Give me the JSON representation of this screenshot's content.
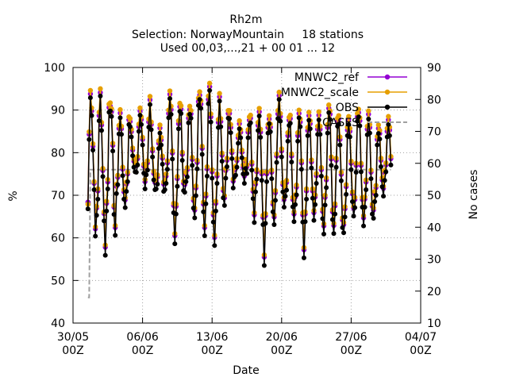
{
  "chart_data": {
    "type": "line",
    "title": "Rh2m",
    "subtitle_lines": [
      "Selection: NorwayMountain     18 stations",
      "Used 00,03,...,21 + 00 01 ... 12"
    ],
    "xlabel": "Date",
    "ylabel": "%",
    "y2label": "No cases",
    "ylim": [
      40,
      100
    ],
    "y2lim": [
      10,
      90
    ],
    "xlim_days": [
      0,
      35
    ],
    "y_ticks": [
      "40",
      "50",
      "60",
      "70",
      "80",
      "90",
      "100"
    ],
    "y2_ticks": [
      "10",
      "20",
      "30",
      "40",
      "50",
      "60",
      "70",
      "80",
      "90"
    ],
    "x_ticks": [
      {
        "line1": "30/05",
        "line2": "00Z",
        "day": 0
      },
      {
        "line1": "06/06",
        "line2": "00Z",
        "day": 7
      },
      {
        "line1": "13/06",
        "line2": "00Z",
        "day": 14
      },
      {
        "line1": "20/06",
        "line2": "00Z",
        "day": 21
      },
      {
        "line1": "27/06",
        "line2": "00Z",
        "day": 28
      },
      {
        "line1": "04/07",
        "line2": "00Z",
        "day": 35
      }
    ],
    "grid": true,
    "legend_position": "top-right",
    "series": [
      {
        "name": "MNWC2_ref",
        "color": "#9400d3",
        "style": "line-points"
      },
      {
        "name": "MNWC2_scale",
        "color": "#e69f00",
        "style": "line-points"
      },
      {
        "name": "OBS",
        "color": "#000000",
        "style": "line-points"
      },
      {
        "name": "CASES",
        "color": "#a0a0a0",
        "style": "dashed"
      }
    ],
    "time_step_hours": 3,
    "start_day": 1.5,
    "end_day": 32.0,
    "series_values": {
      "obs": [
        66.8,
        83.1,
        92.9,
        88.7,
        80.6,
        71.3,
        60.4,
        65.3,
        69.1,
        87.5,
        93.3,
        85.2,
        74.4,
        64.0,
        55.9,
        66.3,
        71.5,
        89.5,
        89.8,
        88.5,
        80.4,
        65.5,
        60.6,
        70.4,
        72.5,
        84.4,
        88.2,
        84.3,
        74.6,
        69.1,
        67.1,
        70.9,
        73.2,
        86.6,
        86.1,
        83.7,
        79.3,
        76.6,
        75.5,
        75.4,
        77.1,
        85.0,
        88.8,
        86.6,
        81.8,
        75.2,
        71.5,
        74.8,
        75.9,
        86.0,
        91.3,
        85.4,
        79.0,
        73.6,
        71.3,
        71.5,
        72.6,
        81.0,
        84.6,
        81.8,
        77.3,
        70.9,
        71.3,
        72.8,
        76.1,
        88.2,
        92.7,
        89.0,
        78.5,
        65.9,
        58.6,
        65.6,
        72.1,
        85.6,
        89.7,
        89.2,
        78.2,
        71.1,
        70.7,
        73.2,
        74.3,
        87.0,
        89.0,
        88.1,
        77.0,
        67.0,
        64.7,
        69.9,
        76.2,
        91.1,
        92.5,
        90.4,
        79.6,
        66.1,
        60.5,
        68.0,
        74.5,
        91.5,
        94.6,
        87.2,
        74.0,
        63.7,
        58.2,
        66.3,
        72.8,
        85.9,
        92.1,
        86.1,
        78.0,
        69.4,
        67.6,
        74.0,
        76.7,
        88.1,
        88.0,
        84.7,
        78.6,
        71.7,
        74.3,
        74.7,
        76.6,
        82.2,
        85.6,
        83.5,
        78.8,
        75.0,
        72.8,
        76.3,
        75.1,
        83.5,
        86.5,
        87.0,
        75.9,
        69.2,
        63.6,
        70.8,
        73.8,
        85.2,
        88.6,
        83.6,
        73.5,
        63.1,
        53.5,
        63.4,
        73.2,
        84.6,
        86.8,
        84.9,
        73.9,
        66.1,
        63.1,
        68.8,
        77.7,
        88.0,
        92.5,
        87.4,
        79.0,
        70.8,
        67.2,
        69.8,
        71.2,
        82.7,
        86.4,
        86.9,
        77.8,
        67.3,
        63.8,
        67.8,
        70.1,
        82.7,
        88.2,
        86.1,
        76.1,
        63.7,
        55.3,
        63.8,
        69.1,
        84.0,
        87.6,
        85.6,
        76.4,
        69.3,
        64.1,
        67.8,
        72.8,
        84.3,
        87.7,
        84.3,
        74.5,
        64.5,
        60.9,
        67.7,
        71.8,
        84.6,
        89.4,
        87.8,
        77.0,
        64.3,
        61.0,
        65.6,
        76.6,
        86.2,
        86.7,
        81.8,
        73.4,
        62.4,
        61.2,
        64.9,
        70.2,
        84.0,
        86.6,
        83.7,
        76.0,
        68.5,
        65.1,
        67.1,
        75.4,
        87.4,
        88.4,
        86.3,
        75.5,
        67.2,
        62.8,
        67.2,
        71.3,
        84.2,
        87.9,
        84.6,
        73.9,
        65.6,
        64.6,
        68.5,
        70.0,
        81.8,
        84.5,
        83.2,
        76.7,
        72.0,
        69.8,
        73.5,
        75.5,
        83.7,
        86.6,
        84.0,
        77.1
      ],
      "ref": [
        68.4,
        84.3,
        93.8,
        89.8,
        81.5,
        72.8,
        62.1,
        67.0,
        71.0,
        88.7,
        94.1,
        86.5,
        75.8,
        65.7,
        57.8,
        68.1,
        73.1,
        90.6,
        90.9,
        89.6,
        81.7,
        67.2,
        62.4,
        72.1,
        74.2,
        85.7,
        89.3,
        85.6,
        76.1,
        70.8,
        68.9,
        72.6,
        75.0,
        87.7,
        87.3,
        84.9,
        80.6,
        78.0,
        76.9,
        77.0,
        78.6,
        86.1,
        89.8,
        87.8,
        83.1,
        76.8,
        73.2,
        76.4,
        77.6,
        87.2,
        92.4,
        86.6,
        80.4,
        75.1,
        73.0,
        73.3,
        74.3,
        82.2,
        85.8,
        83.0,
        78.7,
        72.6,
        73.0,
        74.5,
        77.6,
        89.2,
        93.7,
        90.1,
        79.9,
        67.6,
        60.5,
        67.4,
        73.9,
        86.8,
        90.8,
        90.2,
        79.6,
        72.8,
        72.5,
        74.9,
        76.0,
        88.1,
        90.1,
        89.1,
        78.4,
        68.8,
        66.5,
        71.7,
        77.7,
        92.0,
        93.5,
        91.4,
        81.0,
        67.9,
        62.4,
        69.8,
        76.2,
        92.5,
        95.5,
        88.4,
        75.5,
        65.4,
        60.1,
        68.1,
        74.5,
        87.1,
        93.1,
        87.3,
        79.4,
        71.1,
        69.4,
        75.8,
        78.2,
        89.2,
        89.2,
        85.9,
        80.0,
        73.3,
        76.0,
        76.3,
        78.1,
        83.5,
        86.8,
        84.8,
        80.1,
        76.6,
        74.5,
        77.9,
        76.7,
        84.8,
        87.6,
        88.1,
        77.3,
        70.9,
        65.4,
        72.6,
        75.5,
        86.4,
        89.6,
        84.8,
        75.0,
        64.8,
        55.5,
        65.2,
        75.0,
        85.9,
        87.9,
        86.0,
        75.4,
        67.9,
        64.9,
        70.6,
        79.2,
        89.1,
        93.4,
        88.5,
        80.4,
        72.5,
        69.0,
        71.6,
        73.0,
        84.0,
        87.6,
        88.0,
        79.2,
        69.0,
        65.6,
        69.6,
        71.9,
        84.0,
        89.2,
        87.2,
        77.6,
        65.4,
        57.2,
        65.6,
        71.0,
        85.2,
        88.7,
        86.8,
        77.8,
        71.0,
        65.9,
        69.6,
        74.6,
        85.5,
        88.8,
        85.5,
        76.0,
        66.2,
        62.8,
        69.5,
        73.6,
        85.9,
        90.4,
        89.0,
        78.5,
        66.1,
        62.9,
        67.5,
        78.2,
        87.4,
        87.9,
        83.1,
        74.9,
        64.2,
        63.1,
        66.8,
        72.0,
        85.3,
        87.7,
        85.0,
        77.5,
        70.3,
        66.9,
        69.0,
        77.0,
        88.5,
        89.4,
        87.5,
        77.0,
        69.0,
        64.7,
        69.1,
        73.1,
        85.5,
        89.0,
        85.9,
        75.4,
        67.4,
        66.5,
        70.4,
        71.8,
        83.1,
        85.7,
        84.5,
        78.2,
        73.6,
        71.6,
        75.3,
        77.1,
        85.0,
        87.7,
        85.3,
        78.6
      ],
      "scale": [
        67.9,
        84.9,
        94.6,
        90.5,
        82.1,
        73.2,
        62.6,
        67.4,
        71.5,
        89.5,
        95.0,
        87.1,
        76.3,
        66.1,
        58.3,
        68.6,
        73.7,
        91.4,
        91.7,
        90.3,
        82.2,
        67.6,
        62.9,
        72.6,
        74.7,
        86.4,
        90.1,
        86.2,
        76.6,
        71.3,
        69.4,
        73.1,
        75.4,
        88.4,
        88.0,
        85.5,
        81.1,
        78.5,
        77.4,
        77.5,
        79.1,
        86.7,
        90.5,
        88.4,
        83.6,
        77.3,
        73.7,
        76.9,
        78.1,
        87.9,
        93.2,
        87.2,
        80.9,
        75.6,
        73.5,
        73.8,
        74.8,
        82.8,
        86.5,
        83.6,
        79.2,
        73.1,
        73.5,
        75.0,
        78.1,
        90.0,
        94.5,
        90.9,
        80.4,
        68.1,
        61.0,
        67.9,
        74.4,
        87.5,
        91.6,
        91.0,
        80.1,
        73.3,
        73.0,
        75.4,
        76.5,
        88.9,
        90.9,
        89.9,
        78.9,
        69.3,
        67.0,
        72.2,
        78.2,
        92.8,
        94.3,
        92.2,
        81.5,
        68.4,
        62.9,
        70.3,
        76.7,
        93.3,
        96.3,
        89.1,
        76.0,
        65.9,
        60.6,
        68.6,
        75.0,
        87.8,
        93.9,
        88.0,
        79.9,
        71.6,
        69.9,
        76.3,
        78.7,
        89.9,
        89.9,
        86.6,
        80.5,
        73.8,
        76.5,
        76.8,
        78.6,
        84.1,
        87.5,
        85.4,
        80.6,
        77.1,
        75.0,
        78.4,
        77.2,
        85.4,
        88.4,
        88.8,
        77.8,
        71.4,
        65.9,
        73.1,
        76.0,
        87.1,
        90.4,
        85.5,
        75.5,
        65.3,
        56.0,
        65.7,
        75.5,
        86.6,
        88.7,
        86.7,
        75.9,
        68.4,
        65.4,
        71.1,
        79.7,
        89.9,
        94.2,
        89.2,
        80.9,
        73.0,
        69.5,
        72.1,
        73.5,
        84.7,
        88.3,
        88.8,
        79.7,
        69.5,
        66.1,
        70.1,
        72.4,
        84.7,
        90.0,
        87.9,
        78.1,
        65.9,
        57.7,
        66.1,
        71.5,
        85.9,
        89.5,
        87.5,
        78.3,
        71.5,
        66.4,
        70.1,
        75.1,
        86.2,
        89.6,
        86.2,
        76.5,
        66.7,
        63.3,
        70.0,
        74.1,
        86.6,
        91.2,
        89.8,
        79.0,
        66.6,
        63.4,
        68.0,
        78.7,
        88.1,
        88.7,
        83.7,
        75.4,
        64.7,
        63.6,
        67.3,
        72.5,
        86.0,
        88.5,
        85.7,
        78.0,
        70.8,
        67.4,
        69.5,
        77.5,
        89.2,
        90.2,
        88.2,
        77.5,
        69.5,
        65.2,
        69.6,
        73.6,
        86.2,
        89.8,
        86.6,
        75.9,
        67.9,
        67.0,
        70.9,
        72.3,
        83.8,
        86.5,
        85.2,
        78.7,
        74.1,
        72.1,
        75.8,
        77.6,
        85.7,
        88.5,
        86.0,
        79.1
      ],
      "cases": [
        18,
        18,
        58,
        58,
        58,
        58,
        58,
        58,
        58,
        58,
        58,
        58,
        58,
        58,
        58,
        58,
        58,
        58,
        58,
        58,
        58,
        58,
        58,
        58,
        58,
        58,
        58,
        58,
        58,
        58,
        58,
        58,
        58,
        58,
        58,
        58,
        58,
        58,
        58,
        58,
        58,
        58,
        58,
        58,
        58,
        58,
        58,
        58,
        58,
        58,
        58,
        58,
        58,
        58,
        58,
        58,
        58,
        58,
        58,
        58,
        58,
        58,
        58,
        58,
        58,
        58,
        58,
        58,
        58,
        58,
        58,
        58,
        58,
        58,
        58,
        58,
        58,
        58,
        58,
        58,
        58,
        58,
        58,
        58,
        58,
        58,
        58,
        58,
        58,
        58,
        58,
        58,
        58,
        58,
        58,
        58,
        58,
        58,
        58,
        58,
        58,
        58,
        58,
        58,
        58,
        58,
        58,
        58,
        58,
        58,
        58,
        58,
        58,
        58,
        58,
        58,
        58,
        58,
        58,
        58,
        58,
        58,
        58,
        58,
        58,
        58,
        58,
        58,
        58,
        58,
        58,
        58,
        58,
        58,
        58,
        58,
        58,
        58,
        58,
        58,
        58,
        58,
        58,
        58,
        58,
        58,
        58,
        58,
        58,
        58,
        58,
        58,
        58,
        58,
        58,
        58,
        58,
        58,
        58,
        58,
        58,
        58,
        58,
        58,
        58,
        58,
        58,
        58,
        58,
        58,
        58,
        58,
        58,
        58,
        58,
        58,
        58,
        58,
        58,
        58,
        58,
        58,
        58,
        58,
        58,
        58,
        58,
        58,
        58,
        58,
        58,
        58,
        58,
        58,
        58,
        58,
        58,
        58,
        58,
        58,
        58,
        58,
        58,
        58,
        58,
        58,
        58,
        58,
        58,
        58,
        58,
        58,
        58,
        58,
        58,
        58,
        58,
        58,
        58,
        58,
        58,
        58,
        58,
        58,
        58,
        58,
        58,
        58,
        58,
        58,
        58,
        58,
        58,
        58,
        58,
        58,
        58,
        58,
        58,
        58,
        58,
        58,
        58,
        58,
        58,
        58,
        58,
        58,
        58,
        58,
        58,
        58,
        58,
        58,
        58,
        58,
        58,
        58,
        58,
        58,
        58,
        58,
        58,
        58
      ]
    }
  }
}
